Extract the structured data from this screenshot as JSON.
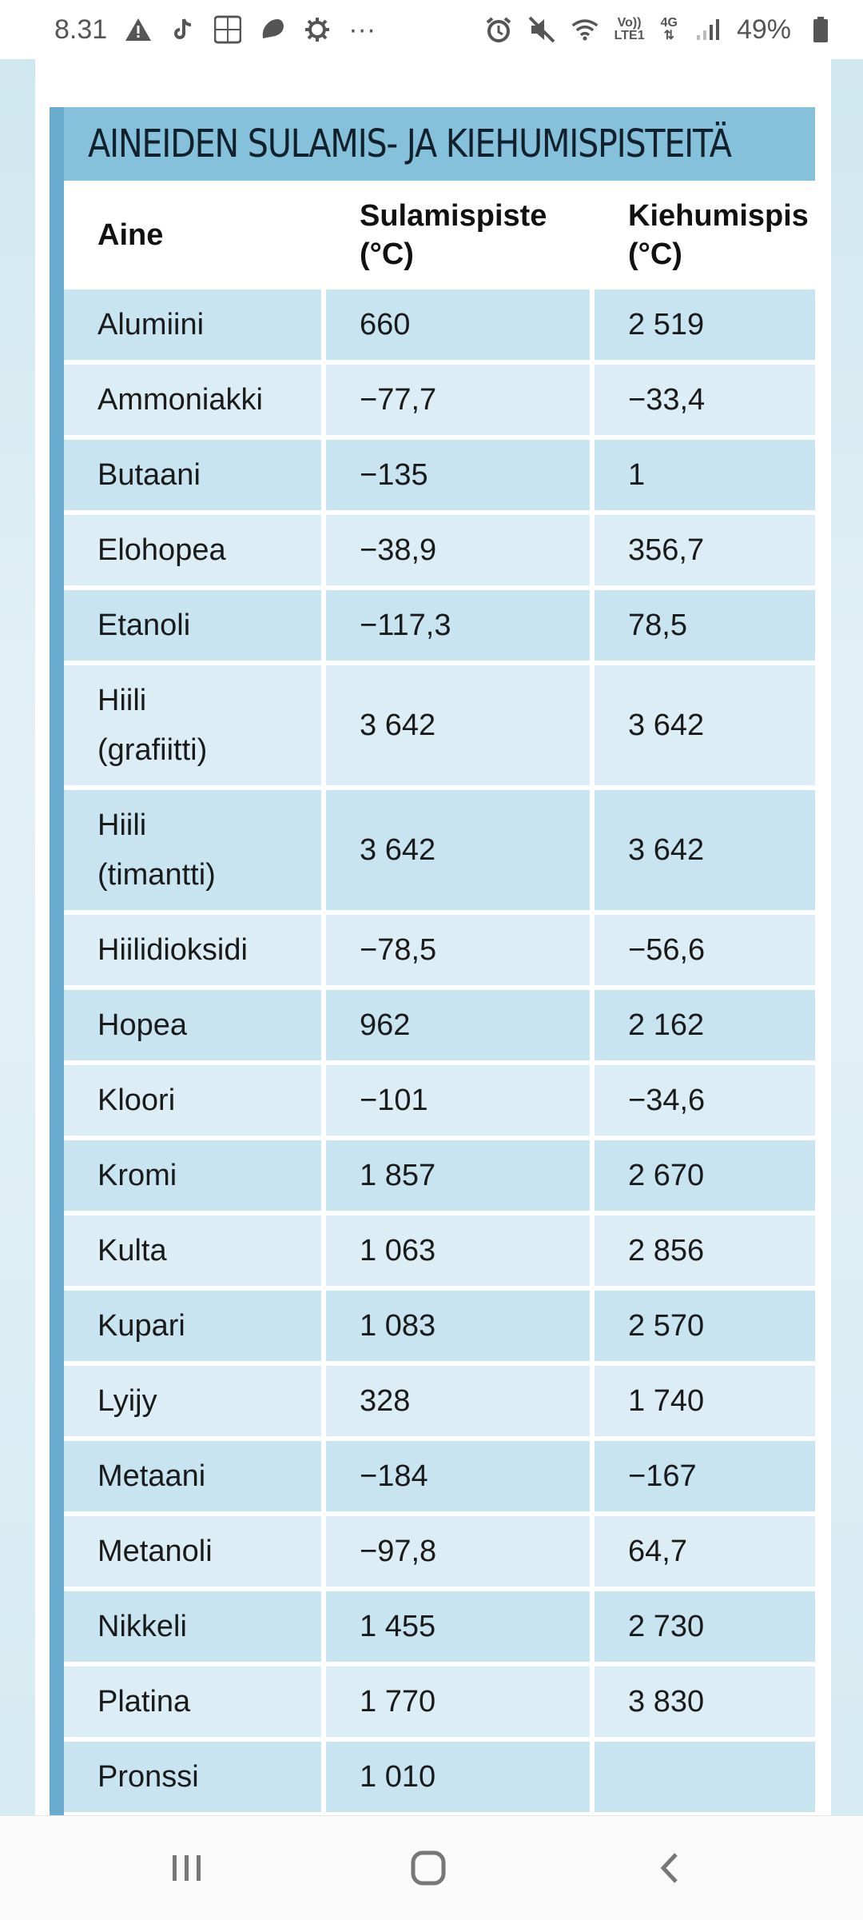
{
  "status": {
    "time": "8.31",
    "more": "···",
    "volte_top": "Vo))",
    "volte_bottom": "LTE1",
    "network": "4G",
    "battery": "49%"
  },
  "table": {
    "title": "AINEIDEN SULAMIS- JA KIEHUMISPISTEITÄ",
    "headers": [
      "Aine",
      "Sulamispiste\n(°C)",
      "Kiehumispis\n(°C)"
    ],
    "rows": [
      [
        "Alumiini",
        "660",
        "2 519"
      ],
      [
        "Ammoniakki",
        "−77,7",
        "−33,4"
      ],
      [
        "Butaani",
        "−135",
        "1"
      ],
      [
        "Elohopea",
        "−38,9",
        "356,7"
      ],
      [
        "Etanoli",
        "−117,3",
        "78,5"
      ],
      [
        "Hiili\n(grafiitti)",
        "3 642",
        "3 642"
      ],
      [
        "Hiili\n(timantti)",
        "3 642",
        "3 642"
      ],
      [
        "Hiilidioksidi",
        "−78,5",
        "−56,6"
      ],
      [
        "Hopea",
        "962",
        "2 162"
      ],
      [
        "Kloori",
        "−101",
        "−34,6"
      ],
      [
        "Kromi",
        "1 857",
        "2 670"
      ],
      [
        "Kulta",
        "1 063",
        "2 856"
      ],
      [
        "Kupari",
        "1 083",
        "2 570"
      ],
      [
        "Lyijy",
        "328",
        "1 740"
      ],
      [
        "Metaani",
        "−184",
        "−167"
      ],
      [
        "Metanoli",
        "−97,8",
        "64,7"
      ],
      [
        "Nikkeli",
        "1 455",
        "2 730"
      ],
      [
        "Platina",
        "1 770",
        "3 830"
      ],
      [
        "Pronssi",
        "1 010",
        ""
      ]
    ]
  },
  "colors": {
    "title_band": "#86c1dc",
    "accent": "#6aaccf",
    "row_dark": "#c8e4f1",
    "row_light": "#dcedf5"
  }
}
